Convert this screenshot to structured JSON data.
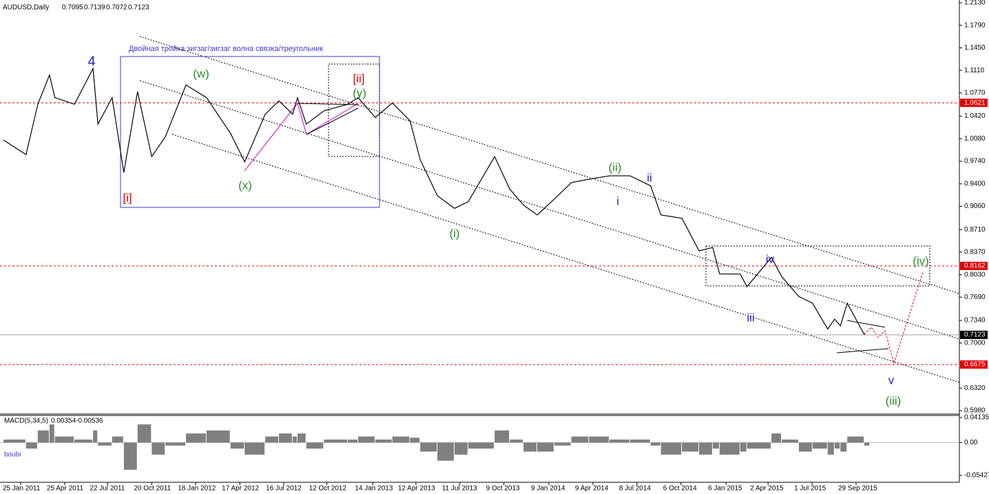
{
  "chart_data": [
    {
      "type": "line",
      "title": "AUDUSD,Daily",
      "ohlc": [
        0.7095,
        0.7139,
        0.7072,
        0.7123
      ],
      "x": [
        "21 Dec 2010",
        "5 Feb 2011",
        "1 Mar 2011",
        "25 Mar 2011",
        "5 Apr 2011",
        "15 May 2011",
        "22 Jun 2011",
        "2 Jul 2011",
        "31 Jul 2011",
        "24 Aug 2011",
        "21 Sep 2011",
        "20 Oct 2011",
        "17 Nov 2011",
        "29 Dec 2011",
        "9 Feb 2012",
        "29 Mar 2012",
        "27 Apr 2012",
        "8 Jun 2012",
        "6 Jul 2012",
        "3 Aug 2012",
        "13 Aug 2012",
        "31 Aug 2012",
        "6 Oct 2012",
        "24 Nov 2012",
        "15 Dec 2012",
        "19 Jan 2013",
        "23 Feb 2013",
        "31 Mar 2013",
        "21 Apr 2013",
        "26 May 2013",
        "30 Jun 2013",
        "28 Jul 2013",
        "20 Sep 2013",
        "21 Oct 2013",
        "18 Nov 2013",
        "16 Dec 2013",
        "20 Jan 2014",
        "24 Feb 2014",
        "1 Apr 2014",
        "13 May 2014",
        "24 Jun 2014",
        "5 Aug 2014",
        "26 Aug 2014",
        "8 Oct 2014",
        "12 Nov 2014",
        "10 Dec 2014",
        "24 Dec 2014",
        "4 Feb 2015",
        "18 Feb 2015",
        "9 Apr 2015",
        "30 Apr 2015",
        "4 Jun 2015",
        "2 Jul 2015",
        "2 Aug 2015",
        "16 Aug 2015",
        "28 Aug 2015",
        "11 Sep 2015",
        "16 Oct 2015"
      ],
      "series": [
        {
          "color": "#000000",
          "values": [
            1.006,
            0.984,
            1.06,
            1.104,
            1.07,
            1.06,
            1.114,
            1.03,
            1.07,
            0.957,
            1.079,
            0.981,
            1.011,
            1.089,
            1.07,
            1.016,
            0.973,
            1.045,
            1.065,
            1.045,
            1.07,
            1.03,
            1.05,
            1.06,
            1.07,
            1.04,
            1.062,
            1.035,
            0.976,
            0.922,
            0.903,
            0.913,
            0.981,
            0.932,
            0.908,
            0.893,
            0.917,
            0.942,
            0.947,
            0.952,
            0.952,
            0.937,
            0.893,
            0.888,
            0.839,
            0.844,
            0.804,
            0.804,
            0.785,
            0.829,
            0.8,
            0.77,
            0.76,
            0.721,
            0.736,
            0.726,
            0.76,
            0.7123
          ]
        }
      ],
      "ylim": [
        0.598,
        1.213
      ],
      "yticks": [
        {
          "value": 1.213,
          "label": "1.2130"
        },
        {
          "value": 1.179,
          "label": "1.1790"
        },
        {
          "value": 1.145,
          "label": "1.1450"
        },
        {
          "value": 1.111,
          "label": "1.1110"
        },
        {
          "value": 1.077,
          "label": "1.0770"
        },
        {
          "value": 1.042,
          "label": "1.0420"
        },
        {
          "value": 1.008,
          "label": "1.0080"
        },
        {
          "value": 0.974,
          "label": "0.9740"
        },
        {
          "value": 0.94,
          "label": "0.9400"
        },
        {
          "value": 0.906,
          "label": "0.9060"
        },
        {
          "value": 0.871,
          "label": "0.8710"
        },
        {
          "value": 0.837,
          "label": "0.8370"
        },
        {
          "value": 0.803,
          "label": "0.8030"
        },
        {
          "value": 0.769,
          "label": "0.7690"
        },
        {
          "value": 0.734,
          "label": "0.7340"
        },
        {
          "value": 0.7,
          "label": "0.7000"
        },
        {
          "value": 0.632,
          "label": "0.6320"
        },
        {
          "value": 0.598,
          "label": "0.5980"
        }
      ],
      "xticks": [
        "25 Jan 2011",
        "25 Apr 2011",
        "22 Jul 2011",
        "20 Oct 2011",
        "18 Jan 2012",
        "17 Apr 2012",
        "16 Jul 2012",
        "12 Oct 2012",
        "14 Jan 2013",
        "12 Apr 2013",
        "11 Jul 2013",
        "9 Oct 2013",
        "9 Jan 2014",
        "9 Apr 2014",
        "8 Jul 2014",
        "6 Oct 2014",
        "6 Jan 2015",
        "2 Apr 2015",
        "1 Jul 2015",
        "29 Sep 2015"
      ],
      "hlines": [
        {
          "value": 1.0621,
          "color": "#e00000"
        },
        {
          "value": 0.8162,
          "color": "#e00000"
        },
        {
          "value": 0.6675,
          "color": "#e00000"
        },
        {
          "value": 0.7123,
          "color": "#a0a0a0"
        }
      ],
      "annotations": [
        {
          "text": "Двойная тройка зигзаг/зигзаг волна связка/треугольник",
          "color": "#3a3ad0"
        },
        {
          "text": "4",
          "color": "#1f1fd6"
        },
        {
          "text": "(w)",
          "color": "#2a8a2a"
        },
        {
          "text": "[i]",
          "color": "#e00000"
        },
        {
          "text": "(x)",
          "color": "#2a8a2a"
        },
        {
          "text": "[ii]",
          "color": "#e00000"
        },
        {
          "text": "(y)",
          "color": "#2a8a2a"
        },
        {
          "text": "(i)",
          "color": "#2a8a2a"
        },
        {
          "text": "(ii)",
          "color": "#2a8a2a"
        },
        {
          "text": "i",
          "color": "#1f1fd6"
        },
        {
          "text": "ii",
          "color": "#1f1fd6"
        },
        {
          "text": "iii",
          "color": "#1f1fd6"
        },
        {
          "text": "iv",
          "color": "#1f1fd6"
        },
        {
          "text": "v",
          "color": "#1f1fd6"
        },
        {
          "text": "(iii)",
          "color": "#2a8a2a"
        },
        {
          "text": "(iv)",
          "color": "#2a8a2a"
        }
      ]
    },
    {
      "type": "bar",
      "title": "MACD(5,34,5)",
      "indicator_values": [
        0.00354,
        -0.00536
      ],
      "note": "boubi",
      "color": "#808080",
      "x": [
        "21 Dec 2010",
        "5 Feb 2011",
        "1 Mar 2011",
        "25 Mar 2011",
        "5 Apr 2011",
        "15 May 2011",
        "22 Jun 2011",
        "2 Jul 2011",
        "31 Jul 2011",
        "24 Aug 2011",
        "21 Sep 2011",
        "20 Oct 2011",
        "17 Nov 2011",
        "29 Dec 2011",
        "9 Feb 2012",
        "29 Mar 2012",
        "27 Apr 2012",
        "8 Jun 2012",
        "6 Jul 2012",
        "3 Aug 2012",
        "13 Aug 2012",
        "31 Aug 2012",
        "6 Oct 2012",
        "24 Nov 2012",
        "15 Dec 2012",
        "19 Jan 2013",
        "23 Feb 2013",
        "31 Mar 2013",
        "21 Apr 2013",
        "26 May 2013",
        "30 Jun 2013",
        "28 Jul 2013",
        "20 Sep 2013",
        "21 Oct 2013",
        "18 Nov 2013",
        "16 Dec 2013",
        "20 Jan 2014",
        "24 Feb 2014",
        "1 Apr 2014",
        "13 May 2014",
        "24 Jun 2014",
        "5 Aug 2014",
        "26 Aug 2014",
        "8 Oct 2014",
        "12 Nov 2014",
        "10 Dec 2014",
        "24 Dec 2014",
        "4 Feb 2015",
        "18 Feb 2015",
        "9 Apr 2015",
        "30 Apr 2015",
        "4 Jun 2015",
        "2 Jul 2015",
        "2 Aug 2015",
        "16 Aug 2015",
        "28 Aug 2015",
        "11 Sep 2015",
        "16 Oct 2015"
      ],
      "values": [
        0.005,
        -0.01,
        0.02,
        0.03,
        0.01,
        0.005,
        0.02,
        -0.005,
        0.01,
        -0.045,
        0.03,
        -0.02,
        -0.005,
        0.015,
        0.02,
        -0.01,
        -0.02,
        0.01,
        0.015,
        0.01,
        0.015,
        -0.01,
        0.005,
        0.005,
        0.01,
        0.005,
        0.01,
        0.008,
        -0.015,
        -0.03,
        -0.02,
        -0.01,
        0.02,
        0.005,
        -0.015,
        -0.015,
        -0.005,
        0.01,
        0.01,
        0.005,
        0.005,
        -0.005,
        -0.02,
        -0.015,
        -0.02,
        -0.01,
        -0.02,
        -0.015,
        -0.01,
        0.015,
        0.005,
        -0.015,
        -0.01,
        -0.02,
        -0.01,
        -0.015,
        0.01,
        -0.005
      ],
      "ylim": [
        -0.05427,
        0.04135
      ],
      "yticks": [
        0.04135,
        {
          "value": 0,
          "label": "0.00"
        },
        -0.05427
      ]
    }
  ]
}
